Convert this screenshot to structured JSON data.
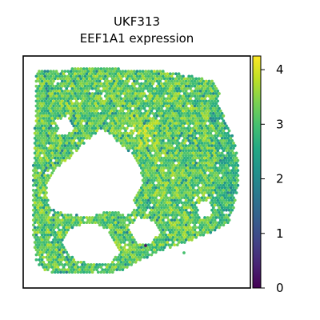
{
  "chart_data": {
    "type": "heatmap",
    "subtype": "spatial-transcriptomics",
    "title": "UKF313",
    "subtitle": "EEF1A1 expression",
    "xlabel": "",
    "ylabel": "",
    "colormap": "viridis",
    "colorbar": {
      "min": 0,
      "max": 4.25,
      "ticks": [
        0,
        1,
        2,
        3,
        4
      ],
      "tick_labels": [
        "0",
        "1",
        "2",
        "3",
        "4"
      ],
      "placement": "right"
    },
    "typical_value": 3.1,
    "value_range_observed": [
      0.2,
      4.2
    ]
  }
}
